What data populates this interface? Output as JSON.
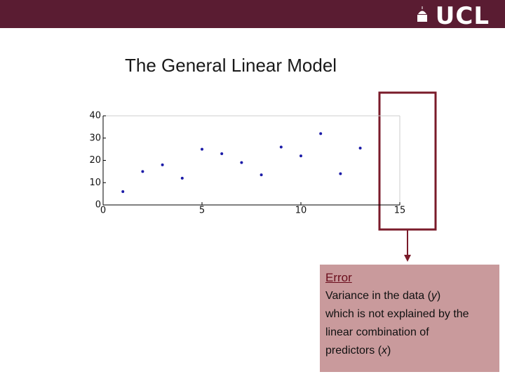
{
  "header": {
    "logo": "UCL"
  },
  "slide": {
    "title": "The General Linear Model"
  },
  "chart_data": {
    "type": "scatter",
    "x": [
      1,
      2,
      3,
      4,
      5,
      6,
      7,
      8,
      9,
      10,
      11,
      12,
      13
    ],
    "values": [
      6,
      15,
      18,
      12,
      25,
      23,
      19,
      13.5,
      26,
      22,
      32,
      14,
      25.5
    ],
    "color": "#1c1ca8",
    "xlim": [
      0,
      15
    ],
    "xticks": [
      0,
      5,
      10,
      15
    ],
    "ylim": [
      0,
      40
    ],
    "yticks": [
      0,
      10,
      20,
      30,
      40
    ]
  },
  "callout": {
    "title": "Error",
    "lines": [
      [
        {
          "text": "Variance in the data ("
        },
        {
          "text": "y",
          "italic": true
        },
        {
          "text": ")"
        }
      ],
      [
        {
          "text": "which is not explained by the"
        }
      ],
      [
        {
          "text": "linear combination of"
        }
      ],
      [
        {
          "text": "predictors ("
        },
        {
          "text": "x",
          "italic": true
        },
        {
          "text": ")"
        }
      ]
    ]
  }
}
